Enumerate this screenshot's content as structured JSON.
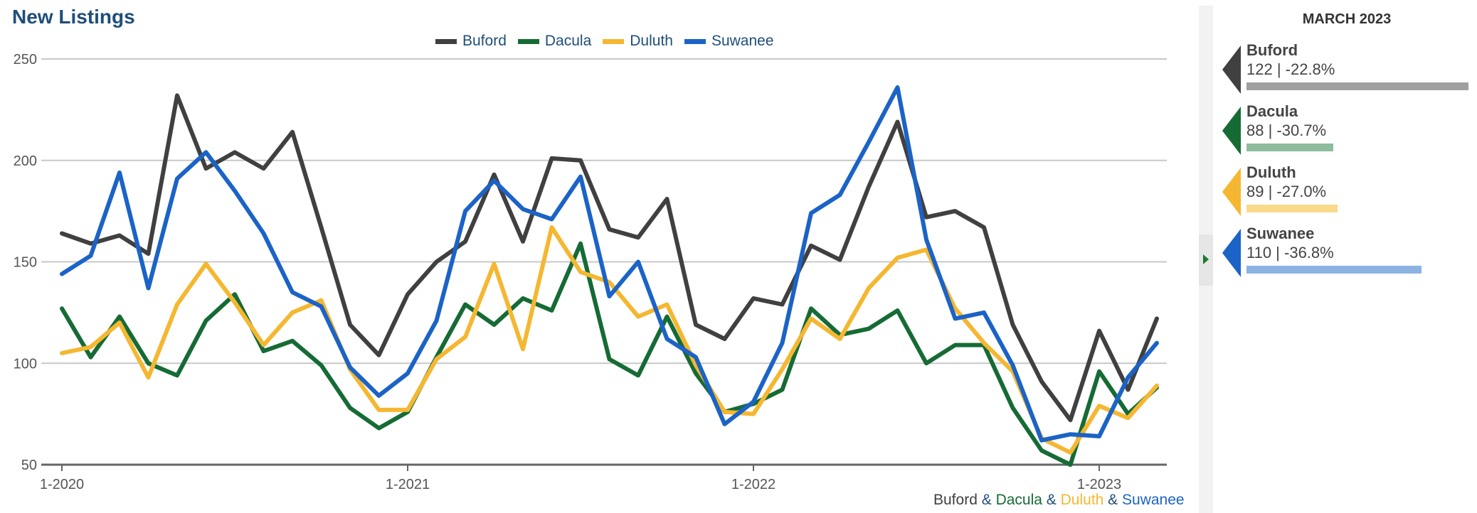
{
  "title": "New Listings",
  "chart_data": {
    "type": "line",
    "title": "New Listings",
    "ylim": [
      50,
      250
    ],
    "yticks": [
      50,
      100,
      150,
      200,
      250
    ],
    "xtick_labels": [
      "1-2020",
      "1-2021",
      "1-2022",
      "1-2023"
    ],
    "xtick_indices": [
      0,
      12,
      24,
      36
    ],
    "x": [
      "2020-01",
      "2020-02",
      "2020-03",
      "2020-04",
      "2020-05",
      "2020-06",
      "2020-07",
      "2020-08",
      "2020-09",
      "2020-10",
      "2020-11",
      "2020-12",
      "2021-01",
      "2021-02",
      "2021-03",
      "2021-04",
      "2021-05",
      "2021-06",
      "2021-07",
      "2021-08",
      "2021-09",
      "2021-10",
      "2021-11",
      "2021-12",
      "2022-01",
      "2022-02",
      "2022-03",
      "2022-04",
      "2022-05",
      "2022-06",
      "2022-07",
      "2022-08",
      "2022-09",
      "2022-10",
      "2022-11",
      "2022-12",
      "2023-01",
      "2023-02",
      "2023-03"
    ],
    "grid": true,
    "legend_position": "top-center",
    "series": [
      {
        "name": "Buford",
        "color": "#404040",
        "values": [
          164,
          159,
          163,
          154,
          232,
          196,
          204,
          196,
          214,
          167,
          119,
          104,
          134,
          150,
          160,
          193,
          160,
          201,
          200,
          166,
          162,
          181,
          119,
          112,
          132,
          129,
          158,
          151,
          187,
          219,
          172,
          175,
          167,
          119,
          91,
          72,
          116,
          87,
          122
        ]
      },
      {
        "name": "Dacula",
        "color": "#166b35",
        "values": [
          127,
          103,
          123,
          100,
          94,
          121,
          134,
          106,
          111,
          99,
          78,
          68,
          76,
          103,
          129,
          119,
          132,
          126,
          159,
          102,
          94,
          123,
          95,
          76,
          80,
          87,
          127,
          114,
          117,
          126,
          100,
          109,
          109,
          78,
          57,
          50,
          96,
          75,
          88
        ]
      },
      {
        "name": "Duluth",
        "color": "#f5b731",
        "values": [
          105,
          108,
          120,
          93,
          129,
          149,
          130,
          109,
          125,
          131,
          97,
          77,
          77,
          102,
          113,
          149,
          107,
          167,
          145,
          140,
          123,
          129,
          99,
          76,
          75,
          97,
          122,
          112,
          137,
          152,
          156,
          127,
          110,
          96,
          63,
          56,
          79,
          73,
          89
        ]
      },
      {
        "name": "Suwanee",
        "color": "#1b63c6",
        "values": [
          144,
          153,
          194,
          137,
          191,
          204,
          185,
          164,
          135,
          128,
          98,
          84,
          95,
          121,
          175,
          190,
          176,
          171,
          192,
          133,
          150,
          112,
          103,
          70,
          81,
          110,
          174,
          183,
          209,
          236,
          161,
          122,
          125,
          99,
          62,
          65,
          64,
          93,
          110
        ]
      }
    ]
  },
  "footer": {
    "parts": [
      {
        "text": "Buford",
        "color": "#404040"
      },
      {
        "text": " & ",
        "color": "#1f4e79"
      },
      {
        "text": "Dacula",
        "color": "#166b35"
      },
      {
        "text": " & ",
        "color": "#1f4e79"
      },
      {
        "text": "Duluth",
        "color": "#f5b731"
      },
      {
        "text": " & ",
        "color": "#1f4e79"
      },
      {
        "text": "Suwanee",
        "color": "#1b63c6"
      }
    ]
  },
  "sidebar": {
    "title": "MARCH 2023",
    "items": [
      {
        "name": "Buford",
        "summary": "122 | -22.8%",
        "marker_color": "#404040",
        "bar_color": "#a0a0a0",
        "bar_fraction": 1.0
      },
      {
        "name": "Dacula",
        "summary": "88 | -30.7%",
        "marker_color": "#166b35",
        "bar_color": "#8fbc9e",
        "bar_fraction": 0.39
      },
      {
        "name": "Duluth",
        "summary": "89 | -27.0%",
        "marker_color": "#f5b731",
        "bar_color": "#f9d98a",
        "bar_fraction": 0.41
      },
      {
        "name": "Suwanee",
        "summary": "110 | -36.8%",
        "marker_color": "#1b63c6",
        "bar_color": "#8cb2e2",
        "bar_fraction": 0.79
      }
    ]
  }
}
